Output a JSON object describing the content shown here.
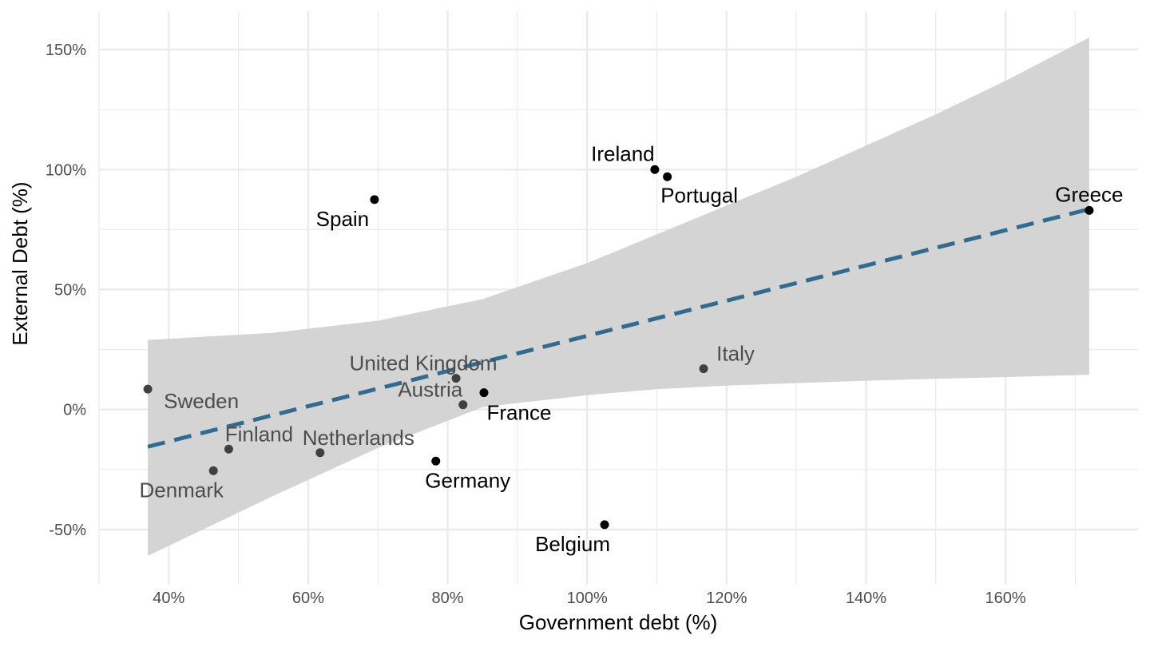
{
  "chart_data": {
    "type": "scatter",
    "xlabel": "Government debt (%)",
    "ylabel": "External Debt (%)",
    "xlim": [
      0.3,
      1.79
    ],
    "ylim": [
      -0.73,
      1.66
    ],
    "x_ticks": [
      0.4,
      0.6,
      0.8,
      1.0,
      1.2,
      1.4,
      1.6
    ],
    "x_tick_labels": [
      "40%",
      "60%",
      "80%",
      "100%",
      "120%",
      "140%",
      "160%"
    ],
    "y_ticks": [
      -0.5,
      0,
      0.5,
      1.0,
      1.5
    ],
    "y_tick_labels": [
      "-50%",
      "0%",
      "50%",
      "100%",
      "150%"
    ],
    "grid": true,
    "points": [
      {
        "label": "Spain",
        "x": 0.695,
        "y": 0.875,
        "highlight": true
      },
      {
        "label": "Ireland",
        "x": 1.097,
        "y": 1.0,
        "highlight": true
      },
      {
        "label": "Portugal",
        "x": 1.115,
        "y": 0.97,
        "highlight": true
      },
      {
        "label": "Greece",
        "x": 1.72,
        "y": 0.83,
        "highlight": true
      },
      {
        "label": "Germany",
        "x": 0.783,
        "y": -0.215,
        "highlight": true
      },
      {
        "label": "Belgium",
        "x": 1.025,
        "y": -0.48,
        "highlight": true
      },
      {
        "label": "France",
        "x": 0.852,
        "y": 0.07,
        "highlight": true
      },
      {
        "label": "Sweden",
        "x": 0.37,
        "y": 0.085,
        "highlight": false
      },
      {
        "label": "Denmark",
        "x": 0.464,
        "y": -0.255,
        "highlight": false
      },
      {
        "label": "Finland",
        "x": 0.486,
        "y": -0.165,
        "highlight": false
      },
      {
        "label": "Netherlands",
        "x": 0.617,
        "y": -0.18,
        "highlight": false
      },
      {
        "label": "Austria",
        "x": 0.822,
        "y": 0.02,
        "highlight": false
      },
      {
        "label": "United Kingdom",
        "x": 0.812,
        "y": 0.13,
        "highlight": false
      },
      {
        "label": "Italy",
        "x": 1.167,
        "y": 0.17,
        "highlight": false
      }
    ],
    "trend_line": {
      "x": [
        0.37,
        1.72
      ],
      "y": [
        -0.155,
        0.835
      ],
      "style": "dashed",
      "color": "#336a90"
    },
    "confidence_band": {
      "x": [
        0.37,
        0.55,
        0.7,
        0.85,
        1.0,
        1.1,
        1.2,
        1.3,
        1.4,
        1.5,
        1.6,
        1.72
      ],
      "upper": [
        0.29,
        0.32,
        0.37,
        0.46,
        0.61,
        0.73,
        0.85,
        0.97,
        1.1,
        1.23,
        1.37,
        1.55
      ],
      "lower": [
        -0.61,
        -0.36,
        -0.16,
        0.01,
        0.06,
        0.085,
        0.1,
        0.11,
        0.12,
        0.128,
        0.135,
        0.145
      ]
    },
    "colors": {
      "band": "#d4d4d4",
      "trend": "#336a90",
      "point_highlight": "#000000",
      "point_muted": "#404040",
      "label_highlight": "#000000",
      "label_muted": "#4d4d4d",
      "grid": "#ebebeb"
    }
  }
}
